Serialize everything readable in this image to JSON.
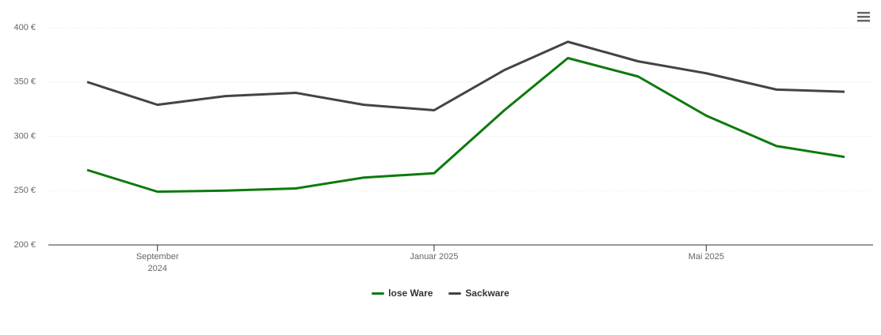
{
  "chart_data": {
    "type": "line",
    "x": [
      "2024-08",
      "2024-09",
      "2024-10",
      "2024-11",
      "2024-12",
      "2025-01",
      "2025-02",
      "2025-03",
      "2025-04",
      "2025-05",
      "2025-06",
      "2025-07"
    ],
    "series": [
      {
        "name": "lose Ware",
        "color": "#0d7a0d",
        "values": [
          269,
          249,
          250,
          252,
          262,
          266,
          324,
          372,
          355,
          319,
          291,
          281
        ]
      },
      {
        "name": "Sackware",
        "color": "#434348",
        "values": [
          350,
          329,
          337,
          340,
          329,
          324,
          361,
          387,
          369,
          358,
          343,
          341
        ]
      }
    ],
    "ylim": [
      200,
      400
    ],
    "yticks": [
      {
        "value": 200,
        "label": "200 €"
      },
      {
        "value": 250,
        "label": "250 €"
      },
      {
        "value": 300,
        "label": "300 €"
      },
      {
        "value": 350,
        "label": "350 €"
      },
      {
        "value": 400,
        "label": "400 €"
      }
    ],
    "xticks": [
      {
        "value": "2024-09",
        "label": "September 2024"
      },
      {
        "value": "2025-01",
        "label": "Januar 2025"
      },
      {
        "value": "2025-05",
        "label": "Mai 2025"
      }
    ],
    "grid": true
  }
}
